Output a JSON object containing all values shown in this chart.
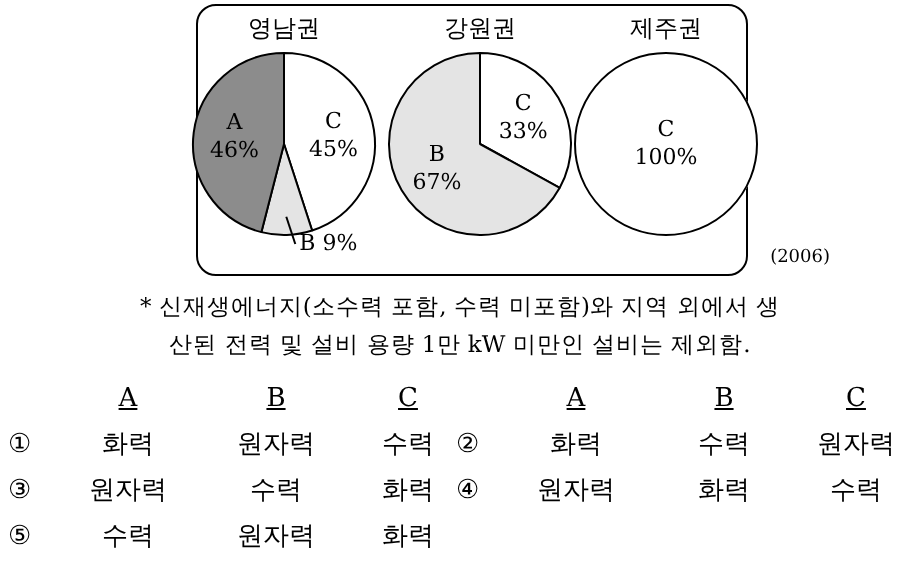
{
  "chart_data": [
    {
      "type": "pie",
      "title": "영남권",
      "categories": [
        "C",
        "B",
        "A"
      ],
      "values": [
        45,
        9,
        46
      ],
      "value_labels": [
        "45%",
        "9%",
        "46%"
      ],
      "colors": [
        "#ffffff",
        "#e4e4e4",
        "#8c8c8c"
      ]
    },
    {
      "type": "pie",
      "title": "강원권",
      "categories": [
        "C",
        "B"
      ],
      "values": [
        33,
        67
      ],
      "value_labels": [
        "33%",
        "67%"
      ],
      "colors": [
        "#ffffff",
        "#e4e4e4"
      ]
    },
    {
      "type": "pie",
      "title": "제주권",
      "categories": [
        "C"
      ],
      "values": [
        100
      ],
      "value_labels": [
        "100%"
      ],
      "colors": [
        "#ffffff"
      ],
      "annotations": [
        "(2006)"
      ]
    },
    {
      "type": "other",
      "categories": [
        "A",
        "B",
        "C"
      ],
      "annotations": [
        "* 신재생에너지(소수력 포함, 수력 미포함)와 지역 외에서 생산된 전력 및 설비 용량 1만 kW 미만인 설비는 제외함.",
        "① 화력 원자력 수력",
        "② 화력 수력 원자력",
        "③ 원자력 수력 화력",
        "④ 원자력 화력 수력",
        "⑤ 수력 원자력 화력"
      ]
    }
  ]
}
